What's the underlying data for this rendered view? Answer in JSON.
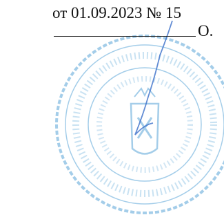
{
  "header": {
    "date_line": "от 01.09.2023 № 15",
    "signature_initial": "О."
  }
}
